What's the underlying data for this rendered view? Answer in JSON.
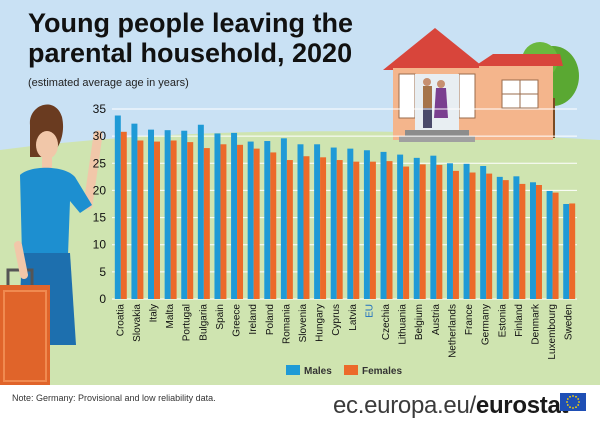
{
  "title": "Young people leaving the parental household, 2020",
  "subtitle": "(estimated average age in years)",
  "note": "Note: Germany: Provisional and low reliability data.",
  "brand": {
    "prefix": "ec.europa.eu/",
    "name": "eurostat"
  },
  "colors": {
    "males": "#1f9ad6",
    "females": "#ec6a2a",
    "sky": "#c9e1f4",
    "grass": "#cfe4b0"
  },
  "chart_data": {
    "type": "bar",
    "ylim": [
      0,
      35
    ],
    "yticks": [
      0,
      5,
      10,
      15,
      20,
      25,
      30,
      35
    ],
    "grid": true,
    "legend": "bottom",
    "categories": [
      "Croatia",
      "Slovakia",
      "Italy",
      "Malta",
      "Portugal",
      "Bulgaria",
      "Spain",
      "Greece",
      "Ireland",
      "Poland",
      "Romania",
      "Slovenia",
      "Hungary",
      "Cyprus",
      "Latvia",
      "EU",
      "Czechia",
      "Lithuania",
      "Belgium",
      "Austria",
      "Netherlands",
      "France",
      "Germany",
      "Estonia",
      "Finland",
      "Denmark",
      "Luxembourg",
      "Sweden"
    ],
    "series": [
      {
        "name": "Males",
        "values": [
          33.8,
          32.3,
          31.2,
          31.1,
          31.0,
          32.1,
          30.5,
          30.6,
          29.0,
          29.1,
          29.6,
          28.5,
          28.5,
          27.9,
          27.7,
          27.4,
          27.1,
          26.6,
          26.0,
          26.4,
          25.0,
          24.9,
          24.5,
          22.5,
          22.6,
          21.5,
          19.9,
          17.5
        ]
      },
      {
        "name": "Females",
        "values": [
          30.8,
          29.2,
          29.0,
          29.2,
          28.9,
          27.8,
          28.5,
          28.4,
          27.7,
          27.0,
          25.6,
          26.3,
          26.1,
          25.6,
          25.3,
          25.3,
          25.4,
          24.4,
          24.8,
          24.7,
          23.6,
          23.3,
          23.1,
          21.9,
          21.2,
          21.0,
          19.6,
          17.6
        ]
      }
    ]
  }
}
